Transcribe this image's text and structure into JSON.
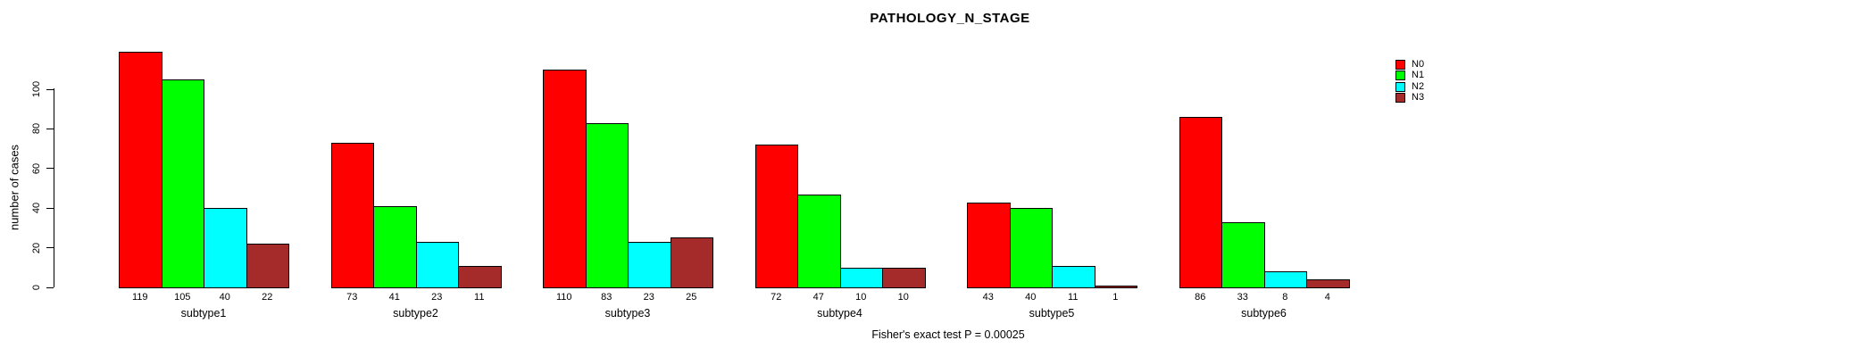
{
  "chart_data": {
    "type": "bar",
    "title": "PATHOLOGY_N_STAGE",
    "ylabel": "number of cases",
    "xlabel": "",
    "annotation": "Fisher's exact test P = 0.00025",
    "categories": [
      "subtype1",
      "subtype2",
      "subtype3",
      "subtype4",
      "subtype5",
      "subtype6"
    ],
    "series": [
      {
        "name": "N0",
        "color": "#FF0000",
        "values": [
          119,
          73,
          110,
          72,
          43,
          86
        ]
      },
      {
        "name": "N1",
        "color": "#00FF00",
        "values": [
          105,
          41,
          83,
          47,
          40,
          33
        ]
      },
      {
        "name": "N2",
        "color": "#00FFFF",
        "values": [
          40,
          23,
          23,
          10,
          11,
          8
        ]
      },
      {
        "name": "N3",
        "color": "#A52A2A",
        "values": [
          22,
          11,
          25,
          10,
          1,
          4
        ]
      }
    ],
    "bar_value_labels": [
      [
        "119",
        "105",
        "40",
        "22"
      ],
      [
        "73",
        "41",
        "23",
        "11"
      ],
      [
        "110",
        "83",
        "23",
        "25"
      ],
      [
        "72",
        "47",
        "10",
        "10"
      ],
      [
        "43",
        "40",
        "11",
        "1"
      ],
      [
        "86",
        "33",
        "8",
        "4"
      ]
    ],
    "yticks": [
      "0",
      "20",
      "40",
      "60",
      "80",
      "100"
    ],
    "ylim": [
      0,
      120
    ],
    "grid": false,
    "legend_position": "right-inside",
    "background_color": "#ffffff",
    "axis_color": "#000000"
  }
}
